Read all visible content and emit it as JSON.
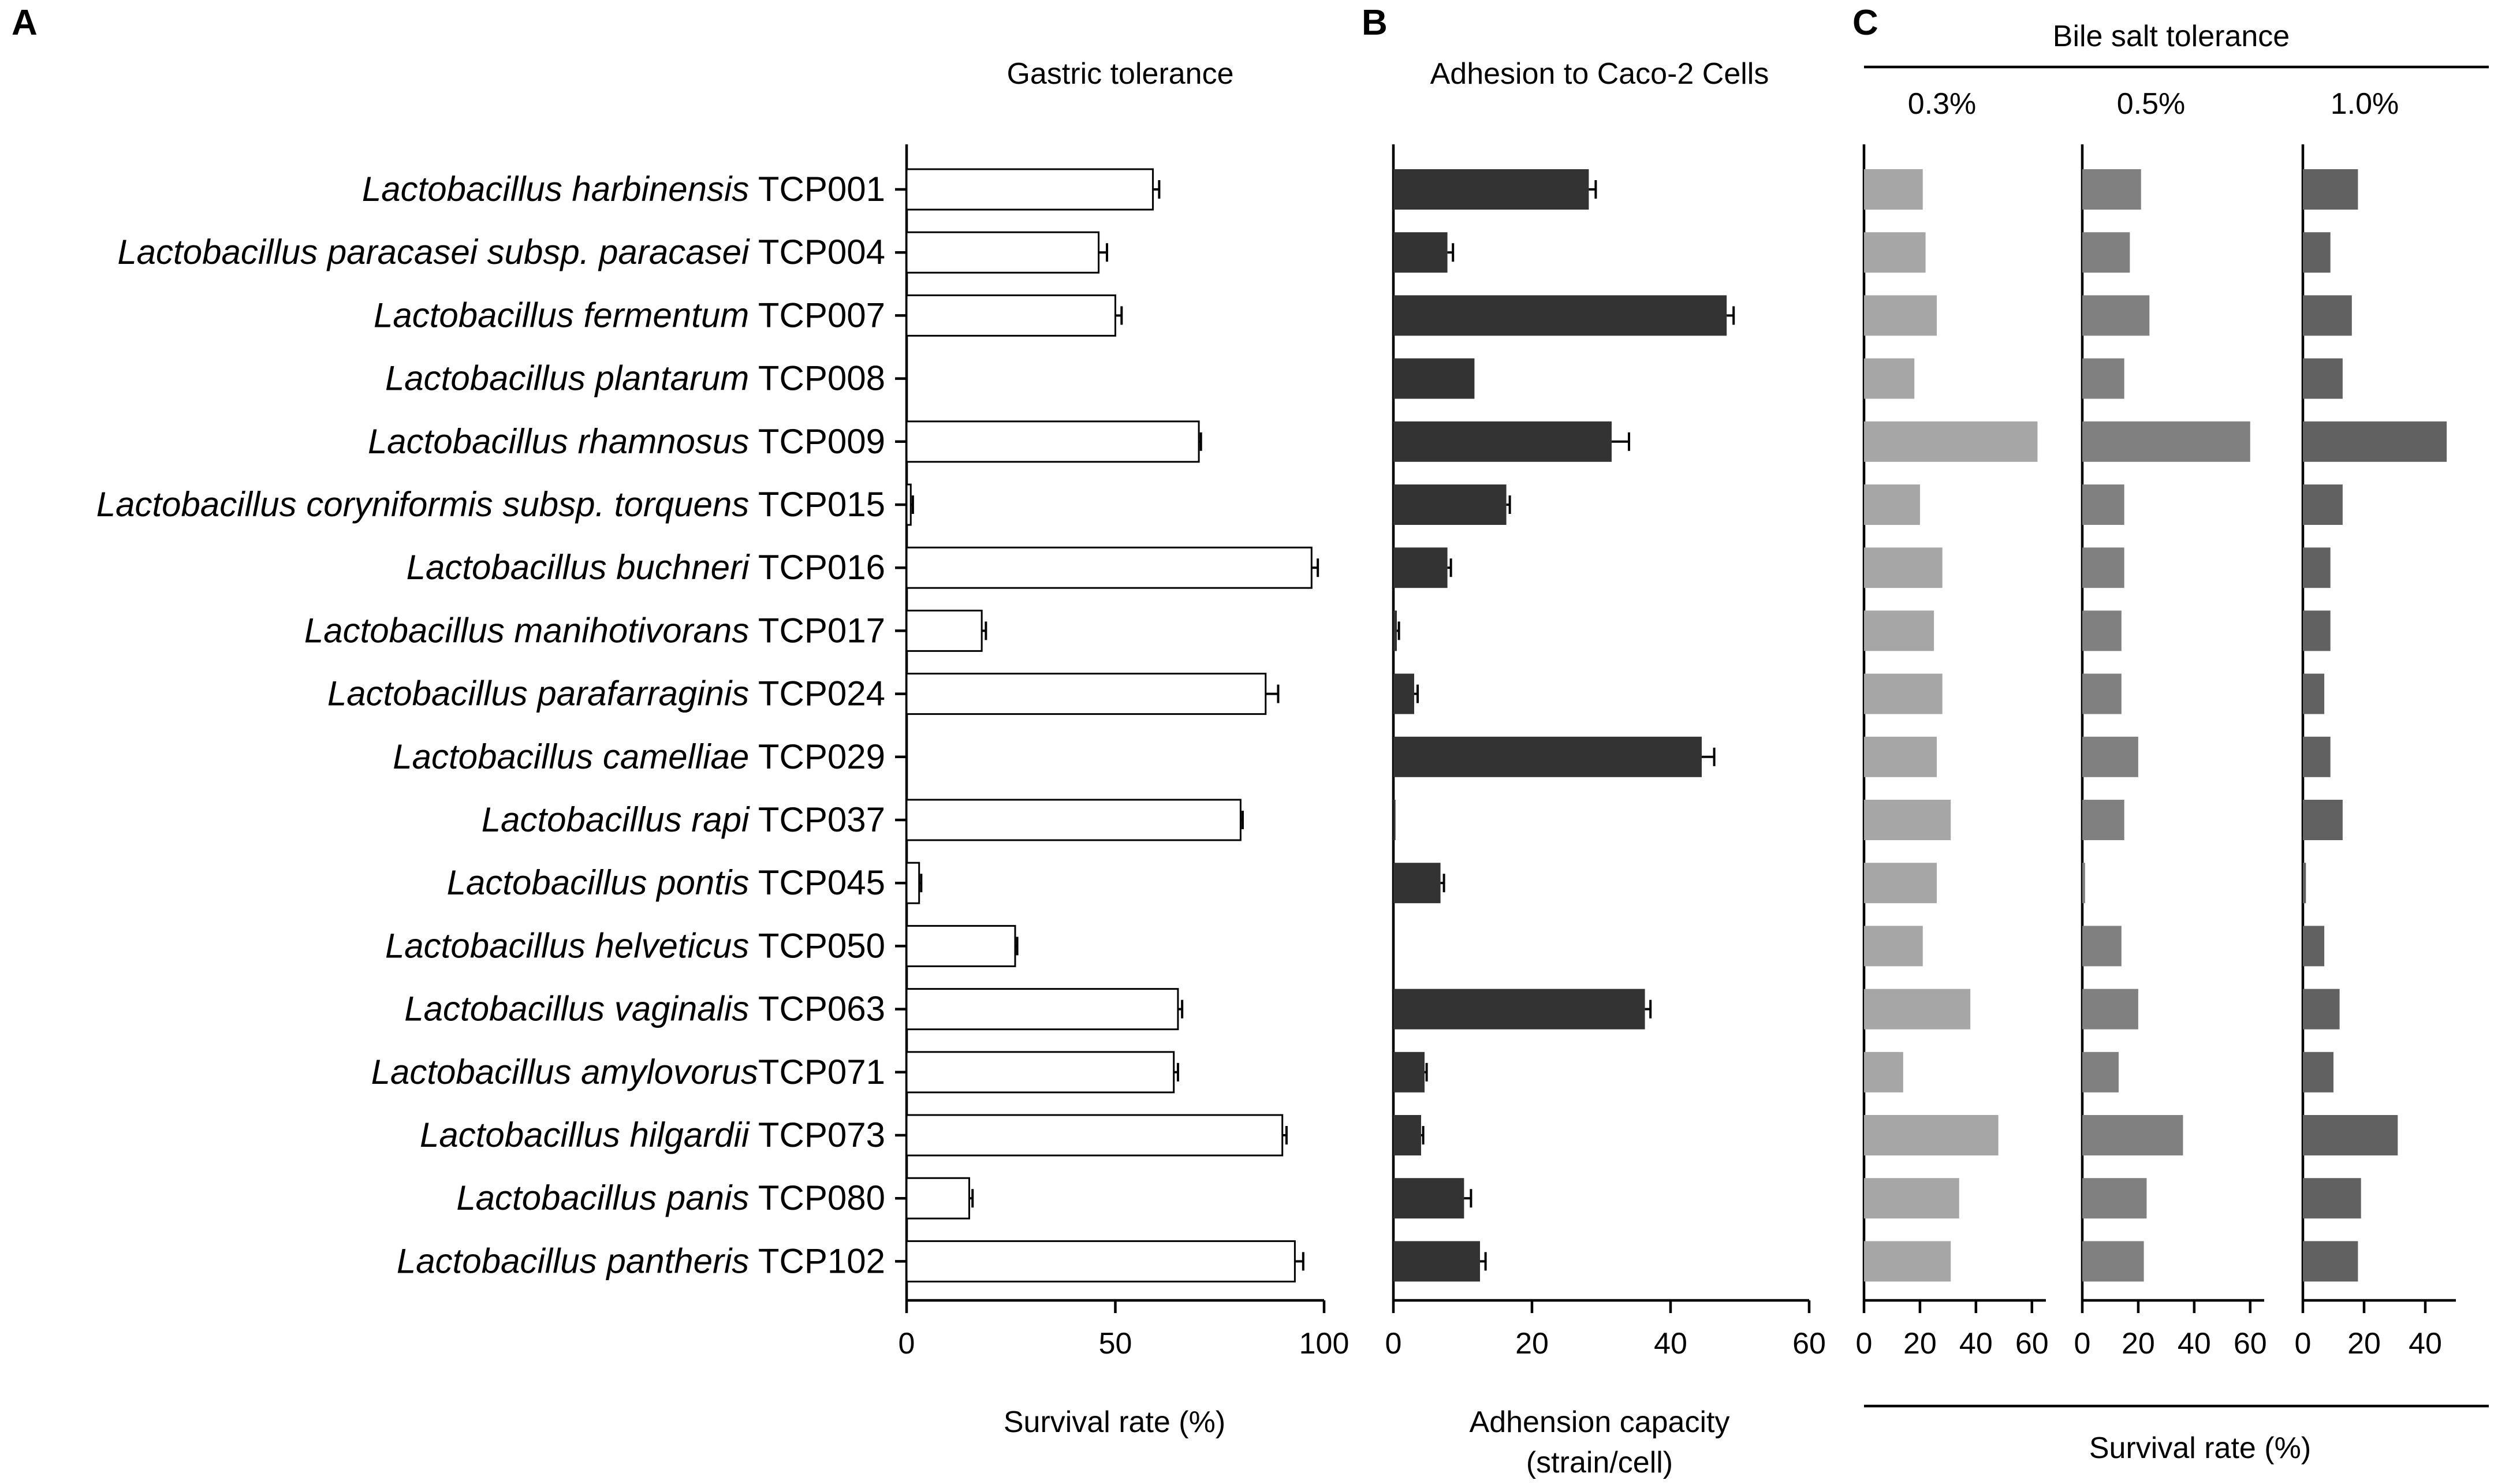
{
  "colors": {
    "gastric_bar": "#ffffff",
    "adhesion_bar": "#333333",
    "bile_03_bar": "#a6a6a6",
    "bile_05_bar": "#808080",
    "bile_10_bar": "#616161"
  },
  "chart_data": [
    {
      "panel": "A",
      "type": "bar",
      "orientation": "horizontal",
      "title": "Gastric tolerance",
      "xlabel": "Survival rate (%)",
      "xlim": [
        0,
        100
      ],
      "xticks": [
        0,
        50,
        100
      ],
      "categories": [
        {
          "species": "Lactobacillus harbinensis",
          "strain": "TCP001"
        },
        {
          "species": "Lactobacillus paracasei subsp. paracasei",
          "strain": "TCP004"
        },
        {
          "species": "Lactobacillus fermentum",
          "strain": "TCP007"
        },
        {
          "species": "Lactobacillus plantarum",
          "strain": "TCP008"
        },
        {
          "species": "Lactobacillus  rhamnosus",
          "strain": "TCP009"
        },
        {
          "species": "Lactobacillus coryniformis subsp. torquens",
          "strain": "TCP015"
        },
        {
          "species": "Lactobacillus buchneri",
          "strain": "TCP016"
        },
        {
          "species": "Lactobacillus manihotivorans",
          "strain": "TCP017"
        },
        {
          "species": "Lactobacillus parafarraginis",
          "strain": "TCP024"
        },
        {
          "species": "Lactobacillus camelliae",
          "strain": "TCP029"
        },
        {
          "species": "Lactobacillus rapi",
          "strain": "TCP037"
        },
        {
          "species": "Lactobacillus pontis",
          "strain": "TCP045"
        },
        {
          "species": "Lactobacillus helveticus",
          "strain": "TCP050"
        },
        {
          "species": "Lactobacillus vaginalis",
          "strain": "TCP063"
        },
        {
          "species": "Lactobacillus amylovorus",
          "strain": "TCP071"
        },
        {
          "species": "Lactobacillus hilgardii",
          "strain": "TCP073"
        },
        {
          "species": "Lactobacillus panis",
          "strain": "TCP080"
        },
        {
          "species": "Lactobacillus pantheris",
          "strain": "TCP102"
        }
      ],
      "values": [
        59,
        46,
        50,
        0,
        70,
        1,
        97,
        18,
        86,
        0,
        80,
        3,
        26,
        65,
        64,
        90,
        15,
        93
      ],
      "errors": [
        1.5,
        2,
        1.5,
        0,
        0.5,
        0.5,
        1.5,
        1,
        3,
        0,
        0.5,
        0.5,
        0.5,
        1,
        1,
        1,
        0.8,
        2
      ]
    },
    {
      "panel": "B",
      "type": "bar",
      "orientation": "horizontal",
      "title": "Adhesion to Caco-2 Cells",
      "xlabel_line1": "Adhension capacity",
      "xlabel_line2": "(strain/cell)",
      "xlim": [
        0,
        60
      ],
      "xticks": [
        0,
        20,
        40,
        60
      ],
      "values": [
        28.2,
        7.8,
        48.1,
        11.7,
        31.5,
        16.3,
        7.8,
        0.5,
        3.0,
        44.5,
        0.3,
        6.8,
        0,
        36.3,
        4.5,
        4.0,
        10.2,
        12.5
      ],
      "errors": [
        1.0,
        0.8,
        1.0,
        0,
        2.5,
        0.5,
        0.5,
        0.3,
        0.5,
        1.8,
        0,
        0.5,
        0,
        0.8,
        0.3,
        0.3,
        1.0,
        0.8
      ]
    },
    {
      "panel": "C",
      "type": "bar",
      "orientation": "horizontal",
      "title": "Bile salt tolerance",
      "xlabel": "Survival rate (%)",
      "series": [
        {
          "name": "0.3%",
          "xlim": [
            0,
            65
          ],
          "xticks": [
            0,
            20,
            40,
            60
          ],
          "values": [
            21,
            22,
            26,
            18,
            62,
            20,
            28,
            25,
            28,
            26,
            31,
            26,
            21,
            38,
            14,
            48,
            34,
            31
          ]
        },
        {
          "name": "0.5%",
          "xlim": [
            0,
            65
          ],
          "xticks": [
            0,
            20,
            40,
            60
          ],
          "values": [
            21,
            17,
            24,
            15,
            60,
            15,
            15,
            14,
            14,
            20,
            15,
            1,
            14,
            20,
            13,
            36,
            23,
            22
          ]
        },
        {
          "name": "1.0%",
          "xlim": [
            0,
            50
          ],
          "xticks": [
            0,
            20,
            40
          ],
          "values": [
            18,
            9,
            16,
            13,
            47,
            13,
            9,
            9,
            7,
            9,
            13,
            1,
            7,
            12,
            10,
            31,
            19,
            18
          ]
        }
      ]
    }
  ]
}
